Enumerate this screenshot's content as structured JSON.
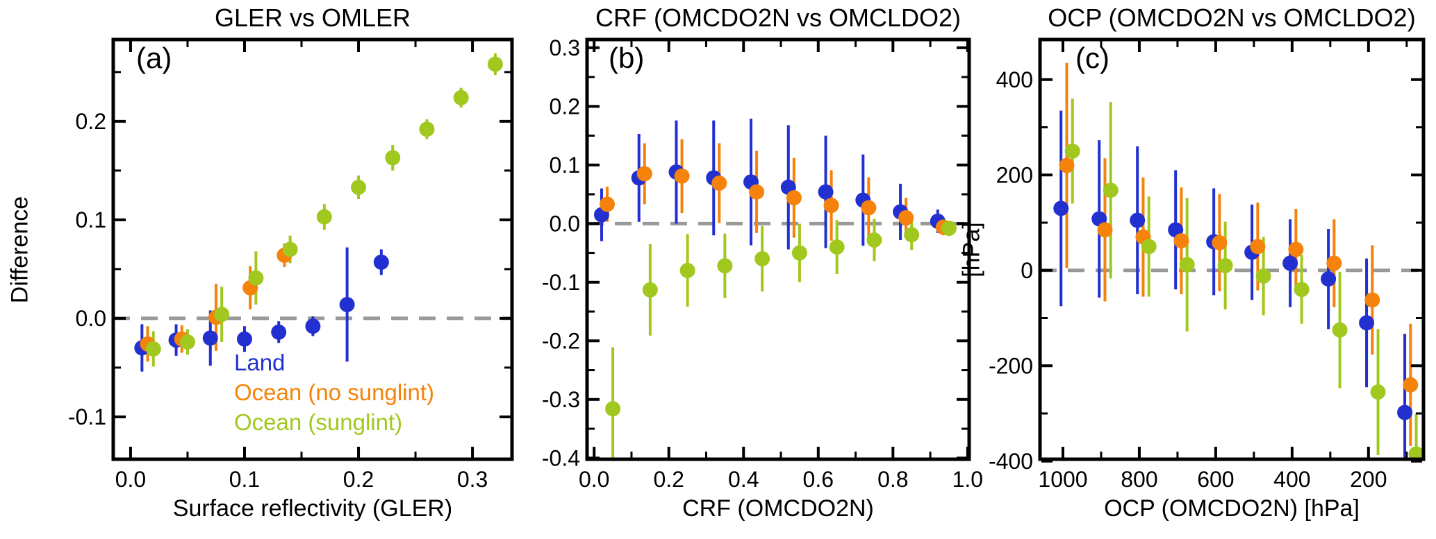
{
  "figure": {
    "background": "#ffffff"
  },
  "colors": {
    "land": "#2230d0",
    "ocean_no_sunglint": "#f5820a",
    "ocean_sunglint": "#a0c81e",
    "zero_line": "#999999",
    "axis": "#000000"
  },
  "legend": {
    "position": "inside-bottom-left-panel-a",
    "items": [
      {
        "label": "Land",
        "series": "land"
      },
      {
        "label": "Ocean (no sunglint)",
        "series": "ocean_no_sunglint"
      },
      {
        "label": "Ocean (sunglint)",
        "series": "ocean_sunglint"
      }
    ]
  },
  "chart_data": {
    "type": "scatter",
    "marker": "filled-circle-with-vertical-error-bars",
    "panels": [
      {
        "panel_label": "(a)",
        "title": "GLER vs OMLER",
        "xlabel": "Surface reflectivity (GLER)",
        "ylabel": "Difference",
        "xlim": [
          -0.0152,
          0.3347
        ],
        "ylim": [
          -0.143,
          0.283
        ],
        "xtick_values": [
          0.0,
          0.1,
          0.2,
          0.3
        ],
        "xtick_labels": [
          "0.0",
          "0.1",
          "0.2",
          "0.3"
        ],
        "ytick_values": [
          -0.1,
          0.0,
          0.1,
          0.2
        ],
        "ytick_labels": [
          "-0.1",
          "0.0",
          "0.1",
          "0.2"
        ],
        "zero_line": 0,
        "series": [
          {
            "name": "Land",
            "key": "land",
            "x": [
              0.01,
              0.04,
              0.07,
              0.1,
              0.13,
              0.16,
              0.19,
              0.22
            ],
            "y": [
              -0.03,
              -0.022,
              -0.02,
              -0.021,
              -0.014,
              -0.008,
              0.014,
              0.057
            ],
            "yerr": [
              0.024,
              0.016,
              0.028,
              0.013,
              0.011,
              0.01,
              0.058,
              0.013
            ]
          },
          {
            "name": "Ocean (no sunglint)",
            "key": "ocean_no_sunglint",
            "x": [
              0.015,
              0.045,
              0.075,
              0.105,
              0.135
            ],
            "y": [
              -0.026,
              -0.021,
              0.001,
              0.031,
              0.064
            ],
            "yerr": [
              0.018,
              0.014,
              0.034,
              0.022,
              0.012
            ]
          },
          {
            "name": "Ocean (sunglint)",
            "key": "ocean_sunglint",
            "x": [
              0.02,
              0.05,
              0.08,
              0.11,
              0.14,
              0.17,
              0.2,
              0.23,
              0.26,
              0.29,
              0.32
            ],
            "y": [
              -0.031,
              -0.024,
              0.004,
              0.041,
              0.07,
              0.103,
              0.133,
              0.163,
              0.192,
              0.224,
              0.258
            ],
            "yerr": [
              0.018,
              0.013,
              0.028,
              0.027,
              0.014,
              0.013,
              0.012,
              0.013,
              0.01,
              0.01,
              0.011
            ]
          }
        ]
      },
      {
        "panel_label": "(b)",
        "title": "CRF (OMCDO2N vs OMCLDO2)",
        "xlabel": "CRF (OMCDO2N)",
        "ylabel": "",
        "xlim": [
          -0.019,
          1.004
        ],
        "ylim": [
          -0.402,
          0.314
        ],
        "xtick_values": [
          0.0,
          0.2,
          0.4,
          0.6,
          0.8,
          1.0
        ],
        "xtick_labels": [
          "0.0",
          "0.2",
          "0.4",
          "0.6",
          "0.8",
          "1.0"
        ],
        "ytick_values": [
          -0.4,
          -0.3,
          -0.2,
          -0.1,
          0.0,
          0.1,
          0.2,
          0.3
        ],
        "ytick_labels": [
          "-0.4",
          "-0.3",
          "-0.2",
          "-0.1",
          "0.0",
          "0.1",
          "0.2",
          "0.3"
        ],
        "zero_line": 0,
        "series": [
          {
            "name": "Land",
            "key": "land",
            "x": [
              0.02,
              0.12,
              0.22,
              0.32,
              0.42,
              0.52,
              0.62,
              0.72,
              0.82,
              0.92
            ],
            "y": [
              0.015,
              0.078,
              0.088,
              0.078,
              0.071,
              0.062,
              0.054,
              0.04,
              0.02,
              0.004
            ],
            "yerr": [
              0.045,
              0.075,
              0.088,
              0.098,
              0.108,
              0.106,
              0.096,
              0.078,
              0.048,
              0.02
            ]
          },
          {
            "name": "Ocean (no sunglint)",
            "key": "ocean_no_sunglint",
            "x": [
              0.035,
              0.135,
              0.235,
              0.335,
              0.435,
              0.535,
              0.635,
              0.735,
              0.835,
              0.935
            ],
            "y": [
              0.033,
              0.085,
              0.081,
              0.069,
              0.054,
              0.044,
              0.031,
              0.027,
              0.01,
              -0.006
            ],
            "yerr": [
              0.03,
              0.052,
              0.063,
              0.068,
              0.07,
              0.068,
              0.06,
              0.052,
              0.034,
              0.014
            ]
          },
          {
            "name": "Ocean (sunglint)",
            "key": "ocean_sunglint",
            "x": [
              0.05,
              0.15,
              0.25,
              0.35,
              0.45,
              0.55,
              0.65,
              0.75,
              0.85,
              0.95
            ],
            "y": [
              -0.316,
              -0.113,
              -0.08,
              -0.072,
              -0.06,
              -0.05,
              -0.04,
              -0.028,
              -0.019,
              -0.008
            ],
            "yerr": [
              0.105,
              0.078,
              0.062,
              0.055,
              0.056,
              0.05,
              0.046,
              0.036,
              0.026,
              0.012
            ]
          }
        ]
      },
      {
        "panel_label": "(c)",
        "title": "OCP (OMCDO2N vs OMCLDO2)",
        "xlabel": "OCP (OMCDO2N) [hPa]",
        "ylabel": "[hPa]",
        "xlim": [
          1060,
          56
        ],
        "ylim": [
          -396,
          484
        ],
        "xtick_values": [
          1000,
          800,
          600,
          400,
          200
        ],
        "xtick_labels": [
          "1000",
          "800",
          "600",
          "400",
          "200"
        ],
        "ytick_values": [
          -400,
          -200,
          0,
          200,
          400
        ],
        "ytick_labels": [
          "-400",
          "-200",
          "0",
          "200",
          "400"
        ],
        "zero_line": 0,
        "series": [
          {
            "name": "Land",
            "key": "land",
            "x": [
              1005,
              905,
              805,
              705,
              605,
              505,
              405,
              305,
              205,
              105
            ],
            "y": [
              130,
              108,
              105,
              85,
              60,
              38,
              15,
              -18,
              -110,
              -298
            ],
            "yerr": [
              205,
              165,
              155,
              125,
              112,
              100,
              92,
              105,
              135,
              165
            ]
          },
          {
            "name": "Ocean (no sunglint)",
            "key": "ocean_no_sunglint",
            "x": [
              990,
              890,
              790,
              690,
              590,
              490,
              390,
              290,
              190,
              90
            ],
            "y": [
              220,
              85,
              70,
              62,
              58,
              50,
              44,
              15,
              -62,
              -240
            ],
            "yerr": [
              215,
              150,
              125,
              112,
              102,
              92,
              85,
              92,
              115,
              128
            ]
          },
          {
            "name": "Ocean (sunglint)",
            "key": "ocean_sunglint",
            "x": [
              975,
              875,
              775,
              675,
              575,
              475,
              375,
              275,
              175,
              75
            ],
            "y": [
              250,
              168,
              50,
              12,
              10,
              -12,
              -40,
              -125,
              -255,
              -385
            ],
            "yerr": [
              110,
              185,
              105,
              140,
              92,
              82,
              72,
              122,
              132,
              85
            ]
          }
        ]
      }
    ]
  }
}
